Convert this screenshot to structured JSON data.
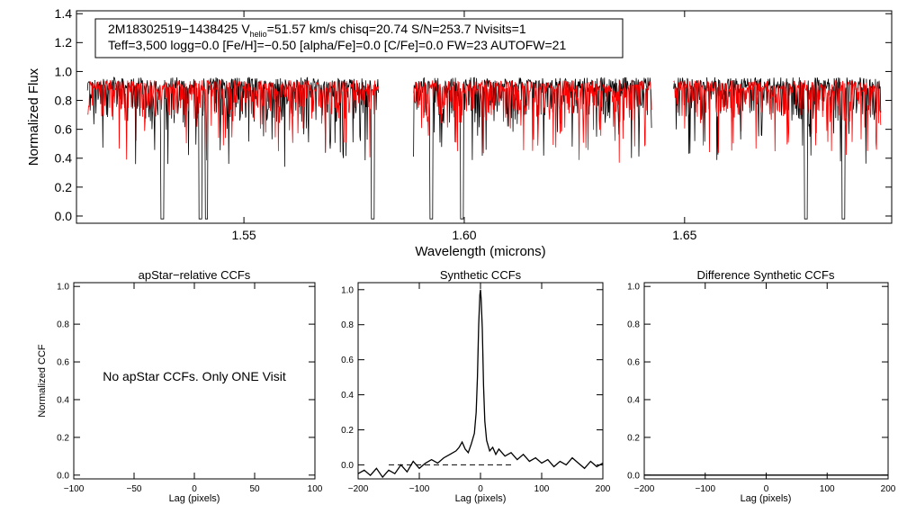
{
  "colors": {
    "observed": "#000000",
    "model": "#ff0000",
    "axis": "#000000",
    "background": "#ffffff"
  },
  "legend": {
    "line1_star": "2M18302519−1438425",
    "line1_v": "V",
    "line1_sub": "helio",
    "line1_rest": "=51.57 km/s  chisq=20.74  S/N=253.7  Nvisits=1",
    "line2": "Teff=3,500 logg=0.0 [Fe/H]=−0.50 [alpha/Fe]=0.0 [C/Fe]=0.0 FW=23 AUTOFW=21"
  },
  "chart_data": [
    {
      "id": "spectrum",
      "type": "line",
      "title": "",
      "xlabel": "Wavelength (microns)",
      "ylabel": "Normalized Flux",
      "xlim": [
        1.512,
        1.697
      ],
      "ylim": [
        -0.05,
        1.42
      ],
      "xticks": [
        1.55,
        1.6,
        1.65
      ],
      "xtick_labels": [
        "1.55",
        "1.60",
        "1.65"
      ],
      "yticks": [
        0.0,
        0.2,
        0.4,
        0.6,
        0.8,
        1.0,
        1.2,
        1.4
      ],
      "ytick_labels": [
        "0.0",
        "0.2",
        "0.4",
        "0.6",
        "0.8",
        "1.0",
        "1.2",
        "1.4"
      ],
      "segments": [
        [
          1.5145,
          1.5805
        ],
        [
          1.5885,
          1.6425
        ],
        [
          1.6475,
          1.6945
        ]
      ],
      "deep_lines": [
        1.5315,
        1.5401,
        1.5415,
        1.5792,
        1.5925,
        1.5995,
        1.6775,
        1.686
      ],
      "series": [
        {
          "name": "Observed spectrum",
          "color": "#000000",
          "continuum": 0.92,
          "depth_range": [
            0.0,
            0.55
          ]
        },
        {
          "name": "Synthetic model",
          "color": "#ff0000",
          "continuum": 0.9,
          "depth_range": [
            0.0,
            0.5
          ]
        }
      ]
    },
    {
      "id": "apstar",
      "type": "line",
      "title": "apStar−relative CCFs",
      "xlabel": "Lag (pixels)",
      "ylabel": "Normalized CCF",
      "xlim": [
        -100,
        100
      ],
      "ylim": [
        -0.02,
        1.02
      ],
      "xticks": [
        -100,
        -50,
        0,
        50,
        100
      ],
      "xtick_labels": [
        "−100",
        "−50",
        "0",
        "50",
        "100"
      ],
      "yticks": [
        0.0,
        0.2,
        0.4,
        0.6,
        0.8,
        1.0
      ],
      "ytick_labels": [
        "0.0",
        "0.2",
        "0.4",
        "0.6",
        "0.8",
        "1.0"
      ],
      "annotation": "No apStar CCFs.  Only ONE Visit",
      "series": []
    },
    {
      "id": "synthetic",
      "type": "line",
      "title": "Synthetic CCFs",
      "xlabel": "Lag (pixels)",
      "ylabel": "",
      "xlim": [
        -200,
        200
      ],
      "ylim": [
        -0.08,
        1.04
      ],
      "xticks": [
        -200,
        -100,
        0,
        100,
        200
      ],
      "xtick_labels": [
        "−200",
        "−100",
        "0",
        "100",
        "200"
      ],
      "yticks": [
        0.0,
        0.2,
        0.4,
        0.6,
        0.8,
        1.0
      ],
      "ytick_labels": [
        "0.0",
        "0.2",
        "0.4",
        "0.6",
        "0.8",
        "1.0"
      ],
      "zero_line": {
        "y": 0.0,
        "x_range": [
          -150,
          50
        ],
        "style": "dashed"
      },
      "series": [
        {
          "name": "Synthetic CCF",
          "color": "#000000",
          "x": [
            -200,
            -190,
            -180,
            -170,
            -160,
            -150,
            -140,
            -130,
            -120,
            -110,
            -100,
            -90,
            -80,
            -70,
            -60,
            -50,
            -40,
            -35,
            -30,
            -25,
            -20,
            -15,
            -10,
            -7,
            -5,
            -3,
            -1,
            0,
            1,
            3,
            5,
            7,
            10,
            15,
            20,
            25,
            30,
            40,
            50,
            60,
            70,
            80,
            90,
            100,
            110,
            120,
            130,
            140,
            150,
            160,
            170,
            180,
            190,
            200
          ],
          "y": [
            -0.05,
            -0.03,
            -0.06,
            -0.02,
            -0.07,
            -0.03,
            -0.05,
            0.0,
            -0.04,
            0.02,
            -0.02,
            0.01,
            0.03,
            0.01,
            0.04,
            0.06,
            0.08,
            0.1,
            0.13,
            0.09,
            0.07,
            0.12,
            0.18,
            0.3,
            0.5,
            0.8,
            0.97,
            1.0,
            0.95,
            0.78,
            0.45,
            0.25,
            0.14,
            0.08,
            0.1,
            0.06,
            0.09,
            0.05,
            0.07,
            0.03,
            0.06,
            0.02,
            0.04,
            0.01,
            0.03,
            -0.01,
            0.02,
            0.0,
            0.04,
            0.01,
            -0.02,
            0.02,
            -0.01,
            0.01
          ]
        }
      ]
    },
    {
      "id": "difference",
      "type": "line",
      "title": "Difference Synthetic CCFs",
      "xlabel": "Lag (pixels)",
      "ylabel": "",
      "xlim": [
        -200,
        200
      ],
      "ylim": [
        -0.02,
        1.02
      ],
      "xticks": [
        -200,
        -100,
        0,
        100,
        200
      ],
      "xtick_labels": [
        "−200",
        "−100",
        "0",
        "100",
        "200"
      ],
      "yticks": [
        0.0,
        0.2,
        0.4,
        0.6,
        0.8,
        1.0
      ],
      "ytick_labels": [
        "0.0",
        "0.2",
        "0.4",
        "0.6",
        "0.8",
        "1.0"
      ],
      "series": [
        {
          "name": "Difference CCF",
          "color": "#000000",
          "x": [
            -200,
            200
          ],
          "y": [
            0.0,
            0.0
          ]
        }
      ]
    }
  ]
}
